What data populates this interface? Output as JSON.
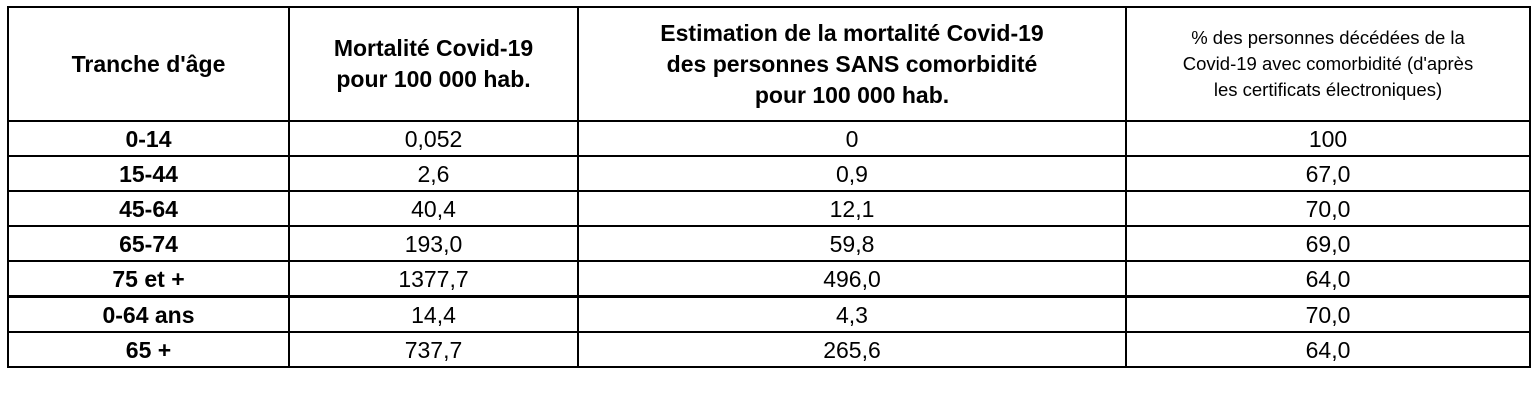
{
  "table": {
    "headers": [
      [
        "Tranche d'âge"
      ],
      [
        "Mortalité Covid-19",
        "pour 100 000 hab."
      ],
      [
        "Estimation de la mortalité Covid-19",
        "des personnes SANS comorbidité",
        "pour 100 000 hab."
      ],
      [
        "% des personnes décédées de la",
        "Covid-19 avec comorbidité (d'après",
        "les certificats électroniques)"
      ]
    ],
    "rows": [
      {
        "age": "0-14",
        "mortality": "0,052",
        "no_comorbidity": "0",
        "pct_comorbidity": "100"
      },
      {
        "age": "15-44",
        "mortality": "2,6",
        "no_comorbidity": "0,9",
        "pct_comorbidity": "67,0"
      },
      {
        "age": "45-64",
        "mortality": "40,4",
        "no_comorbidity": "12,1",
        "pct_comorbidity": "70,0"
      },
      {
        "age": "65-74",
        "mortality": "193,0",
        "no_comorbidity": "59,8",
        "pct_comorbidity": "69,0"
      },
      {
        "age": "75 et +",
        "mortality": "1377,7",
        "no_comorbidity": "496,0",
        "pct_comorbidity": "64,0"
      },
      {
        "age": "0-64 ans",
        "mortality": "14,4",
        "no_comorbidity": "4,3",
        "pct_comorbidity": "70,0"
      },
      {
        "age": "65 +",
        "mortality": "737,7",
        "no_comorbidity": "265,6",
        "pct_comorbidity": "64,0"
      }
    ]
  }
}
